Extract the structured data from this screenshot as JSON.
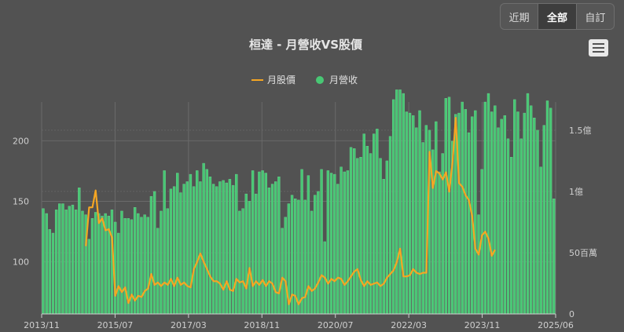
{
  "range_selector": {
    "buttons": [
      "近期",
      "全部",
      "自訂"
    ],
    "active": "全部"
  },
  "chart_data": {
    "type": "bar",
    "title": "桓達 - 月營收VS股價",
    "legend_position": "top-center",
    "grid": true,
    "x_ticks": [
      "2013/11",
      "2015/07",
      "2017/03",
      "2018/11",
      "2020/07",
      "2022/03",
      "2023/11",
      "2025/06"
    ],
    "left_axis": {
      "ticks": [
        "100",
        "150",
        "200"
      ],
      "tick_values": [
        100,
        150,
        200
      ],
      "range": [
        57,
        232
      ]
    },
    "right_axis": {
      "ticks": [
        "0",
        "50百萬",
        "1億",
        "1.5億"
      ],
      "tick_values": [
        0,
        50,
        100,
        150
      ],
      "range": [
        0,
        173
      ],
      "unit": "百萬"
    },
    "series": [
      {
        "name": "月營收",
        "type": "bar",
        "axis": "right",
        "color": "#48c774",
        "values": [
          86,
          82,
          69,
          66,
          85,
          90,
          90,
          85,
          88,
          89,
          85,
          103,
          84,
          81,
          61,
          78,
          83,
          82,
          80,
          82,
          80,
          85,
          75,
          66,
          84,
          78,
          78,
          77,
          87,
          82,
          79,
          81,
          79,
          96,
          100,
          70,
          84,
          117,
          86,
          102,
          104,
          115,
          99,
          106,
          108,
          114,
          104,
          117,
          108,
          123,
          118,
          112,
          106,
          104,
          108,
          109,
          107,
          110,
          105,
          114,
          84,
          86,
          98,
          92,
          117,
          98,
          116,
          117,
          115,
          103,
          106,
          108,
          112,
          70,
          79,
          90,
          97,
          94,
          93,
          118,
          93,
          113,
          84,
          97,
          100,
          118,
          59,
          117,
          115,
          114,
          106,
          120,
          116,
          117,
          136,
          135,
          127,
          128,
          147,
          137,
          131,
          147,
          151,
          127,
          110,
          125,
          145,
          175,
          183,
          183,
          180,
          165,
          164,
          162,
          152,
          166,
          140,
          154,
          150,
          134,
          157,
          116,
          131,
          176,
          177,
          141,
          163,
          164,
          173,
          167,
          148,
          161,
          166,
          81,
          118,
          173,
          180,
          165,
          170,
          152,
          159,
          162,
          143,
          128,
          175,
          165,
          143,
          164,
          180,
          170,
          160,
          150,
          120,
          154,
          174,
          168,
          94
        ],
        "bar_outline": [
          128,
          124,
          109,
          106,
          125,
          130,
          130,
          125,
          128,
          129,
          125,
          143,
          124,
          121,
          101,
          118,
          123,
          122,
          120,
          122,
          120,
          125,
          115,
          106,
          124,
          118,
          118,
          117,
          127,
          122,
          119,
          121,
          119,
          136,
          140,
          110,
          124,
          157,
          126,
          142,
          144,
          155,
          139,
          146,
          148,
          154,
          144,
          157,
          148,
          163,
          158,
          152,
          146,
          144,
          148,
          149,
          147,
          150,
          145,
          154,
          124,
          126,
          138,
          132,
          157,
          138,
          156,
          157,
          155,
          143,
          146,
          148,
          152,
          110,
          119,
          130,
          137,
          134,
          133,
          158,
          133,
          153,
          124,
          137,
          140,
          158,
          99,
          157,
          155,
          154,
          146,
          160,
          156,
          157,
          176,
          175,
          167,
          168,
          187,
          177,
          171,
          187,
          191,
          167,
          150,
          165,
          185,
          215,
          223,
          223,
          220,
          205,
          204,
          202,
          192,
          206,
          180,
          194,
          190,
          174,
          197,
          156,
          171,
          216,
          217,
          181,
          203,
          204,
          213,
          207,
          188,
          201,
          206,
          121,
          158,
          213,
          220,
          205,
          210,
          192,
          199,
          202,
          183,
          168,
          215,
          205,
          183,
          204,
          220,
          210,
          200,
          190,
          160,
          194,
          214,
          208,
          134
        ]
      },
      {
        "name": "月股價",
        "type": "line",
        "axis": "left",
        "color": "#f5a623",
        "x_start_index": 13,
        "values": [
          113,
          145,
          145,
          159,
          132,
          136,
          126,
          127,
          120,
          72,
          80,
          75,
          79,
          66,
          73,
          68,
          72,
          71,
          76,
          78,
          90,
          81,
          83,
          80,
          83,
          81,
          86,
          80,
          87,
          81,
          83,
          80,
          79,
          94,
          100,
          107,
          100,
          94,
          88,
          84,
          84,
          82,
          77,
          84,
          77,
          76,
          86,
          83,
          84,
          78,
          95,
          80,
          84,
          81,
          85,
          80,
          84,
          82,
          75,
          74,
          87,
          84,
          65,
          73,
          72,
          65,
          70,
          71,
          80,
          76,
          78,
          83,
          89,
          87,
          82,
          86,
          84,
          87,
          86,
          81,
          84,
          88,
          92,
          94,
          85,
          80,
          84,
          81,
          82,
          83,
          80,
          82,
          87,
          90,
          93,
          100,
          111,
          88,
          88,
          89,
          94,
          91,
          90,
          91,
          91,
          191,
          161,
          175,
          173,
          168,
          174,
          158,
          182,
          219,
          165,
          162,
          155,
          151,
          138,
          111,
          106,
          122,
          125,
          119,
          105,
          110
        ]
      }
    ]
  }
}
